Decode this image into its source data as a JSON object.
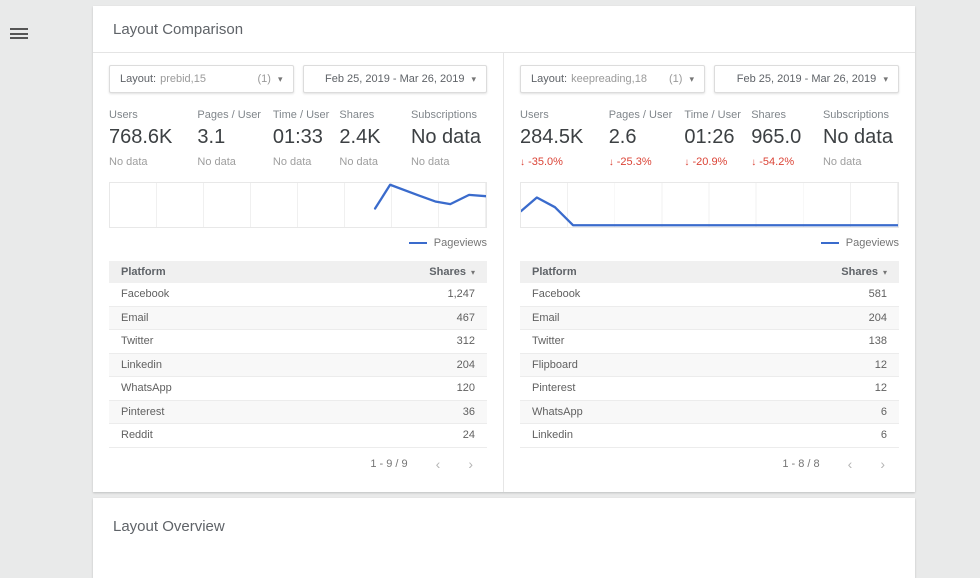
{
  "icons": {
    "menu": "≡",
    "caret_down": "▾",
    "sort_caret": "▾",
    "chevron_left": "‹",
    "chevron_right": "›",
    "arrow_down": "↓"
  },
  "colors": {
    "background": "#e9eaea",
    "card": "#ffffff",
    "sparkline_blue": "#3a6bcc",
    "delta_negative_red": "#db4437",
    "table_header_bg": "#f0f0f0"
  },
  "comparison_card": {
    "title": "Layout Comparison",
    "panels": [
      {
        "filter_chip": {
          "label": "Layout:",
          "value": "prebid,15",
          "count": "(1)"
        },
        "date_chip": {
          "value": "Feb 25, 2019 - Mar 26, 2019"
        },
        "metrics": [
          {
            "label": "Users",
            "value": "768.6K",
            "arrow": "",
            "delta": "No data",
            "delta_type": "nodata"
          },
          {
            "label": "Pages / User",
            "value": "3.1",
            "arrow": "",
            "delta": "No data",
            "delta_type": "nodata"
          },
          {
            "label": "Time / User",
            "value": "01:33",
            "arrow": "",
            "delta": "No data",
            "delta_type": "nodata"
          },
          {
            "label": "Shares",
            "value": "2.4K",
            "arrow": "",
            "delta": "No data",
            "delta_type": "nodata"
          },
          {
            "label": "Subscriptions",
            "value": "No data",
            "arrow": "",
            "delta": "No data",
            "delta_type": "nodata"
          }
        ],
        "legend": "Pageviews",
        "table": {
          "headers": [
            "Platform",
            "Shares"
          ],
          "rows": [
            {
              "platform": "Facebook",
              "shares": "1,247"
            },
            {
              "platform": "Email",
              "shares": "467"
            },
            {
              "platform": "Twitter",
              "shares": "312"
            },
            {
              "platform": "Linkedin",
              "shares": "204"
            },
            {
              "platform": "WhatsApp",
              "shares": "120"
            },
            {
              "platform": "Pinterest",
              "shares": "36"
            },
            {
              "platform": "Reddit",
              "shares": "24"
            }
          ]
        },
        "pagination": "1 - 9 / 9"
      },
      {
        "filter_chip": {
          "label": "Layout:",
          "value": "keepreading,18",
          "count": "(1)"
        },
        "date_chip": {
          "value": "Feb 25, 2019 - Mar 26, 2019"
        },
        "metrics": [
          {
            "label": "Users",
            "value": "284.5K",
            "arrow": "↓",
            "delta": "-35.0%",
            "delta_type": "down"
          },
          {
            "label": "Pages / User",
            "value": "2.6",
            "arrow": "↓",
            "delta": "-25.3%",
            "delta_type": "down"
          },
          {
            "label": "Time / User",
            "value": "01:26",
            "arrow": "↓",
            "delta": "-20.9%",
            "delta_type": "down"
          },
          {
            "label": "Shares",
            "value": "965.0",
            "arrow": "↓",
            "delta": "-54.2%",
            "delta_type": "down"
          },
          {
            "label": "Subscriptions",
            "value": "No data",
            "arrow": "",
            "delta": "No data",
            "delta_type": "nodata"
          }
        ],
        "legend": "Pageviews",
        "table": {
          "headers": [
            "Platform",
            "Shares"
          ],
          "rows": [
            {
              "platform": "Facebook",
              "shares": "581"
            },
            {
              "platform": "Email",
              "shares": "204"
            },
            {
              "platform": "Twitter",
              "shares": "138"
            },
            {
              "platform": "Flipboard",
              "shares": "12"
            },
            {
              "platform": "Pinterest",
              "shares": "12"
            },
            {
              "platform": "WhatsApp",
              "shares": "6"
            },
            {
              "platform": "Linkedin",
              "shares": "6"
            }
          ]
        },
        "pagination": "1 - 8 / 8"
      }
    ]
  },
  "overview_card": {
    "title": "Layout Overview"
  },
  "chart_data": [
    {
      "type": "line",
      "title": "Pageviews sparkline — Layout: prebid,15",
      "x_range": "Feb 25, 2019 - Mar 26, 2019",
      "legend": [
        "Pageviews"
      ],
      "legend_position": "bottom-right",
      "axes_labeled": false,
      "grid": true,
      "grid_columns": 8,
      "line_color": "#3a6bcc",
      "series": [
        {
          "name": "Pageviews",
          "points_pct": [
            [
              70.5,
              58
            ],
            [
              74.5,
              4
            ],
            [
              82,
              28
            ],
            [
              86.5,
              42
            ],
            [
              90.5,
              48
            ],
            [
              95.5,
              27
            ],
            [
              100,
              30
            ]
          ]
        }
      ]
    },
    {
      "type": "line",
      "title": "Pageviews sparkline — Layout: keepreading,18",
      "x_range": "Feb 25, 2019 - Mar 26, 2019",
      "legend": [
        "Pageviews"
      ],
      "legend_position": "bottom-right",
      "axes_labeled": false,
      "grid": true,
      "grid_columns": 8,
      "line_color": "#3a6bcc",
      "series": [
        {
          "name": "Pageviews",
          "points_pct": [
            [
              0,
              64
            ],
            [
              4.2,
              33
            ],
            [
              9,
              55
            ],
            [
              13.8,
              96
            ],
            [
              100,
              96
            ]
          ]
        }
      ]
    }
  ]
}
